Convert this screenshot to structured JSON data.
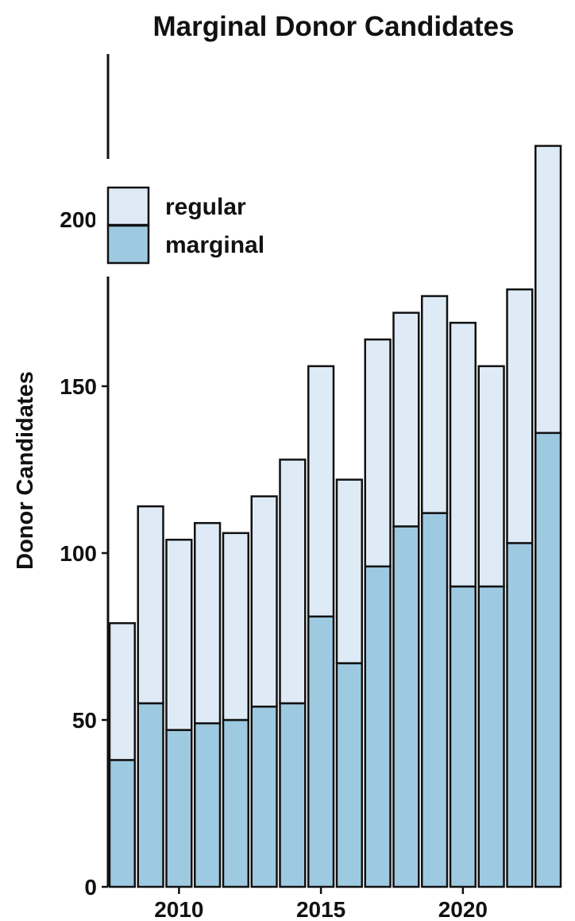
{
  "chart_data": {
    "type": "bar",
    "stacked": true,
    "title": "Marginal Donor Candidates",
    "xlabel": "",
    "ylabel": "Donor Candidates",
    "x": [
      2008,
      2009,
      2010,
      2011,
      2012,
      2013,
      2014,
      2015,
      2016,
      2017,
      2018,
      2019,
      2020,
      2021,
      2022,
      2023
    ],
    "series": [
      {
        "name": "marginal",
        "color": "#9ecae1",
        "values": [
          38,
          55,
          47,
          49,
          50,
          54,
          55,
          81,
          67,
          96,
          108,
          112,
          90,
          90,
          103,
          136
        ]
      },
      {
        "name": "regular",
        "color": "#deebf7",
        "values": [
          41,
          59,
          57,
          60,
          56,
          63,
          73,
          75,
          55,
          68,
          64,
          65,
          79,
          66,
          76,
          86
        ]
      }
    ],
    "totals": [
      79,
      114,
      104,
      109,
      106,
      117,
      128,
      156,
      122,
      164,
      172,
      177,
      169,
      156,
      179,
      222
    ],
    "xticks": [
      2010,
      2015,
      2020
    ],
    "yticks": [
      0,
      50,
      100,
      150,
      200
    ],
    "ylim": [
      0,
      240
    ],
    "grid": false,
    "legend": {
      "position": "top-left",
      "order": [
        "regular",
        "marginal"
      ]
    },
    "bar_edge_color": "#111111"
  }
}
